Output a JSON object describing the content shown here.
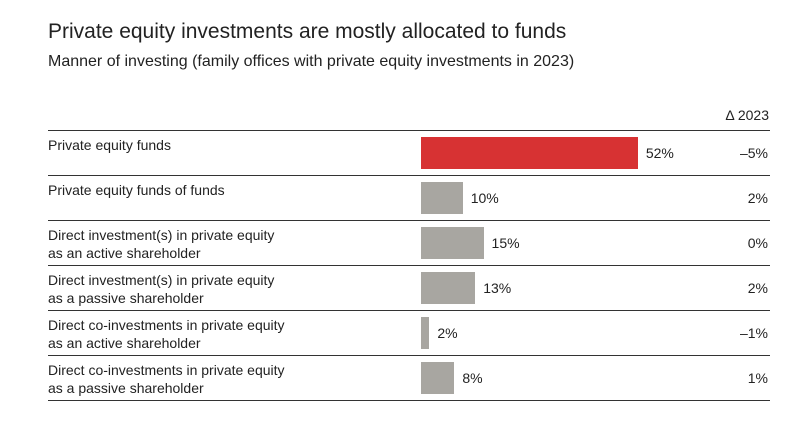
{
  "chart_data": {
    "type": "bar",
    "orientation": "horizontal",
    "title": "Private equity investments are mostly allocated to funds",
    "subtitle": "Manner of investing (family offices with private equity investments in 2023)",
    "delta_header": "Δ 2023",
    "xlim": [
      0,
      100
    ],
    "highlight_color": "#d73233",
    "bar_color": "#a8a6a1",
    "categories": [
      [
        "Private equity funds"
      ],
      [
        "Private equity funds of funds"
      ],
      [
        "Direct investment(s) in private equity",
        "as an active shareholder"
      ],
      [
        "Direct investment(s) in private equity",
        "as a passive shareholder"
      ],
      [
        "Direct co-investments in private equity",
        "as an active shareholder"
      ],
      [
        "Direct co-investments in private equity",
        "as a passive shareholder"
      ]
    ],
    "values": [
      52,
      10,
      15,
      13,
      2,
      8
    ],
    "value_labels": [
      "52%",
      "10%",
      "15%",
      "13%",
      "2%",
      "8%"
    ],
    "deltas": [
      "–5%",
      "2%",
      "0%",
      "2%",
      "–1%",
      "1%"
    ],
    "highlight_index": 0
  }
}
